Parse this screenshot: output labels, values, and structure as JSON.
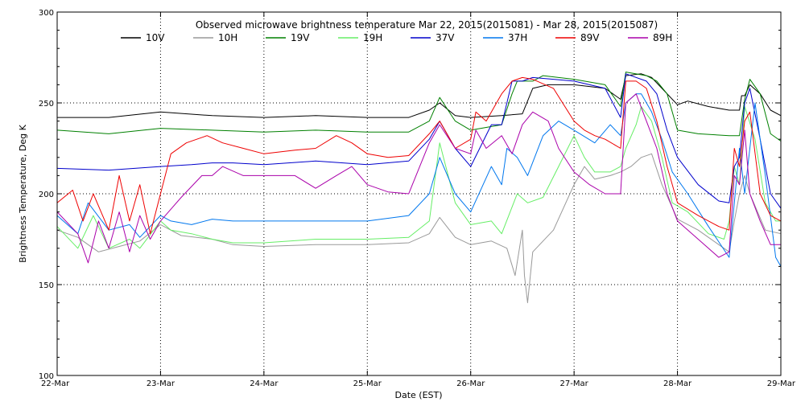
{
  "chart_data": {
    "type": "line",
    "title": "Observed microwave brightness temperature Mar 22, 2015(2015081) - Mar 28, 2015(2015087)",
    "xlabel": "Date (EST)",
    "ylabel": "Brightness Temperature, Deg K",
    "ylim": [
      100,
      300
    ],
    "xlim": [
      0,
      7
    ],
    "y_ticks": [
      100,
      150,
      200,
      250,
      300
    ],
    "x_tick_values": [
      0,
      1,
      2,
      3,
      4,
      5,
      6,
      7
    ],
    "x_tick_labels": [
      "22-Mar",
      "23-Mar",
      "24-Mar",
      "25-Mar",
      "26-Mar",
      "27-Mar",
      "28-Mar",
      "29-Mar"
    ],
    "grid": "dotted",
    "legend_position": "top",
    "series": [
      {
        "name": "10V",
        "color": "#000000",
        "x": [
          0,
          0.5,
          1.0,
          1.5,
          2.0,
          2.5,
          3.0,
          3.4,
          3.6,
          3.7,
          3.85,
          4.0,
          4.3,
          4.5,
          4.6,
          4.75,
          5.0,
          5.3,
          5.45,
          5.5,
          5.65,
          5.75,
          6.0,
          6.1,
          6.3,
          6.5,
          6.6,
          6.62,
          6.65,
          6.7,
          6.8,
          6.9,
          7.0
        ],
        "values": [
          242,
          242,
          245,
          243,
          242,
          243,
          242,
          242,
          246,
          250,
          243,
          242,
          243,
          244,
          258,
          260,
          260,
          258,
          252,
          265,
          266,
          264,
          249,
          251,
          248,
          246,
          246,
          254,
          254,
          260,
          255,
          246,
          243
        ]
      },
      {
        "name": "10H",
        "color": "#999999",
        "x": [
          0,
          0.2,
          0.3,
          0.4,
          0.6,
          0.8,
          1.0,
          1.2,
          1.5,
          1.7,
          2.0,
          2.5,
          3.0,
          3.4,
          3.6,
          3.7,
          3.85,
          4.0,
          4.2,
          4.35,
          4.43,
          4.5,
          4.52,
          4.55,
          4.6,
          4.8,
          5.0,
          5.1,
          5.2,
          5.35,
          5.45,
          5.55,
          5.65,
          5.75,
          5.85,
          6.0,
          6.2,
          6.4,
          6.5,
          6.55,
          6.6,
          6.65,
          6.7,
          6.85,
          7.0
        ],
        "values": [
          180,
          176,
          172,
          168,
          171,
          174,
          183,
          177,
          175,
          172,
          171,
          172,
          172,
          173,
          178,
          187,
          176,
          172,
          174,
          170,
          155,
          180,
          155,
          140,
          168,
          180,
          205,
          215,
          208,
          210,
          212,
          215,
          220,
          222,
          205,
          186,
          180,
          172,
          168,
          185,
          200,
          210,
          200,
          180,
          178
        ]
      },
      {
        "name": "19V",
        "color": "#008000",
        "x": [
          0,
          0.5,
          1.0,
          1.5,
          2.0,
          2.5,
          3.0,
          3.4,
          3.6,
          3.7,
          3.85,
          4.0,
          4.3,
          4.4,
          4.45,
          4.5,
          4.6,
          4.7,
          5.0,
          5.3,
          5.45,
          5.5,
          5.7,
          5.8,
          5.9,
          6.0,
          6.2,
          6.5,
          6.6,
          6.65,
          6.7,
          6.8,
          6.9,
          7.0
        ],
        "values": [
          235,
          233,
          236,
          235,
          234,
          235,
          234,
          234,
          240,
          253,
          240,
          235,
          238,
          255,
          262,
          262,
          262,
          265,
          263,
          260,
          248,
          267,
          265,
          262,
          255,
          235,
          233,
          232,
          232,
          252,
          263,
          255,
          233,
          229
        ]
      },
      {
        "name": "19H",
        "color": "#66ee66",
        "x": [
          0,
          0.2,
          0.35,
          0.5,
          0.7,
          0.8,
          1.0,
          1.1,
          1.3,
          1.5,
          1.7,
          2.0,
          2.5,
          3.0,
          3.4,
          3.6,
          3.7,
          3.85,
          4.0,
          4.2,
          4.3,
          4.45,
          4.55,
          4.7,
          4.85,
          5.0,
          5.1,
          5.2,
          5.35,
          5.45,
          5.5,
          5.6,
          5.65,
          5.75,
          5.85,
          5.95,
          6.1,
          6.3,
          6.45,
          6.5,
          6.55,
          6.6,
          6.65,
          6.75,
          6.85,
          6.95,
          7.0
        ],
        "values": [
          182,
          170,
          188,
          170,
          175,
          170,
          185,
          180,
          178,
          175,
          173,
          173,
          175,
          175,
          176,
          185,
          228,
          195,
          183,
          185,
          178,
          200,
          195,
          198,
          215,
          232,
          220,
          212,
          212,
          215,
          225,
          238,
          248,
          240,
          220,
          195,
          190,
          178,
          175,
          185,
          215,
          205,
          248,
          230,
          195,
          185,
          185
        ]
      },
      {
        "name": "37V",
        "color": "#0000cc",
        "x": [
          0,
          0.5,
          1.0,
          1.3,
          1.5,
          1.7,
          2.0,
          2.5,
          3.0,
          3.4,
          3.6,
          3.7,
          3.85,
          4.0,
          4.2,
          4.3,
          4.35,
          4.4,
          4.5,
          4.6,
          4.8,
          5.0,
          5.3,
          5.45,
          5.5,
          5.7,
          5.8,
          5.9,
          6.0,
          6.2,
          6.4,
          6.5,
          6.55,
          6.6,
          6.65,
          6.7,
          6.8,
          6.9,
          7.0
        ],
        "values": [
          214,
          213,
          215,
          216,
          217,
          217,
          216,
          218,
          216,
          218,
          230,
          240,
          225,
          215,
          238,
          238,
          250,
          262,
          262,
          264,
          263,
          262,
          258,
          242,
          266,
          262,
          255,
          235,
          220,
          205,
          196,
          195,
          215,
          220,
          250,
          258,
          230,
          200,
          192
        ]
      },
      {
        "name": "37H",
        "color": "#0077ee",
        "x": [
          0,
          0.2,
          0.3,
          0.5,
          0.7,
          0.8,
          1.0,
          1.1,
          1.3,
          1.5,
          1.7,
          2.0,
          2.5,
          3.0,
          3.4,
          3.6,
          3.7,
          3.85,
          4.0,
          4.2,
          4.3,
          4.35,
          4.45,
          4.55,
          4.7,
          4.85,
          5.0,
          5.2,
          5.35,
          5.45,
          5.5,
          5.6,
          5.65,
          5.75,
          5.85,
          5.95,
          6.1,
          6.3,
          6.5,
          6.55,
          6.6,
          6.65,
          6.75,
          6.85,
          6.95,
          7.0
        ],
        "values": [
          188,
          178,
          195,
          180,
          183,
          176,
          188,
          185,
          183,
          186,
          185,
          185,
          185,
          185,
          188,
          200,
          220,
          200,
          190,
          215,
          205,
          225,
          220,
          210,
          232,
          240,
          235,
          228,
          238,
          232,
          250,
          255,
          255,
          245,
          230,
          212,
          200,
          182,
          165,
          195,
          225,
          200,
          250,
          210,
          165,
          160
        ]
      },
      {
        "name": "89V",
        "color": "#ee0000",
        "x": [
          0,
          0.15,
          0.25,
          0.35,
          0.5,
          0.6,
          0.7,
          0.8,
          0.9,
          1.0,
          1.1,
          1.25,
          1.45,
          1.6,
          1.8,
          2.0,
          2.3,
          2.5,
          2.7,
          2.85,
          3.0,
          3.2,
          3.4,
          3.6,
          3.7,
          3.85,
          4.0,
          4.05,
          4.15,
          4.3,
          4.4,
          4.5,
          4.6,
          4.8,
          5.0,
          5.1,
          5.2,
          5.3,
          5.45,
          5.5,
          5.6,
          5.7,
          5.8,
          5.9,
          6.0,
          6.2,
          6.4,
          6.5,
          6.55,
          6.6,
          6.65,
          6.7,
          6.8,
          6.9,
          7.0
        ],
        "values": [
          195,
          202,
          185,
          200,
          180,
          210,
          185,
          205,
          178,
          200,
          222,
          228,
          232,
          228,
          225,
          222,
          224,
          225,
          232,
          228,
          222,
          220,
          221,
          233,
          240,
          225,
          230,
          245,
          240,
          255,
          262,
          264,
          263,
          258,
          240,
          235,
          232,
          230,
          225,
          262,
          262,
          258,
          240,
          215,
          195,
          188,
          182,
          180,
          225,
          215,
          240,
          245,
          200,
          188,
          185
        ]
      },
      {
        "name": "89H",
        "color": "#aa00aa",
        "x": [
          0,
          0.2,
          0.3,
          0.4,
          0.5,
          0.6,
          0.7,
          0.8,
          0.9,
          1.0,
          1.2,
          1.4,
          1.5,
          1.6,
          1.8,
          2.0,
          2.3,
          2.5,
          2.7,
          2.85,
          3.0,
          3.2,
          3.4,
          3.6,
          3.7,
          3.85,
          4.0,
          4.05,
          4.15,
          4.3,
          4.4,
          4.5,
          4.6,
          4.75,
          4.85,
          5.0,
          5.15,
          5.3,
          5.45,
          5.5,
          5.6,
          5.7,
          5.8,
          5.9,
          6.0,
          6.2,
          6.4,
          6.5,
          6.55,
          6.6,
          6.65,
          6.7,
          6.8,
          6.9,
          7.0
        ],
        "values": [
          190,
          178,
          162,
          185,
          170,
          190,
          168,
          188,
          175,
          185,
          198,
          210,
          210,
          215,
          210,
          210,
          210,
          203,
          210,
          215,
          205,
          201,
          200,
          228,
          238,
          225,
          222,
          235,
          225,
          232,
          222,
          238,
          245,
          240,
          225,
          212,
          205,
          200,
          200,
          250,
          255,
          240,
          225,
          200,
          185,
          175,
          165,
          168,
          210,
          205,
          235,
          200,
          185,
          172,
          172
        ]
      }
    ]
  }
}
